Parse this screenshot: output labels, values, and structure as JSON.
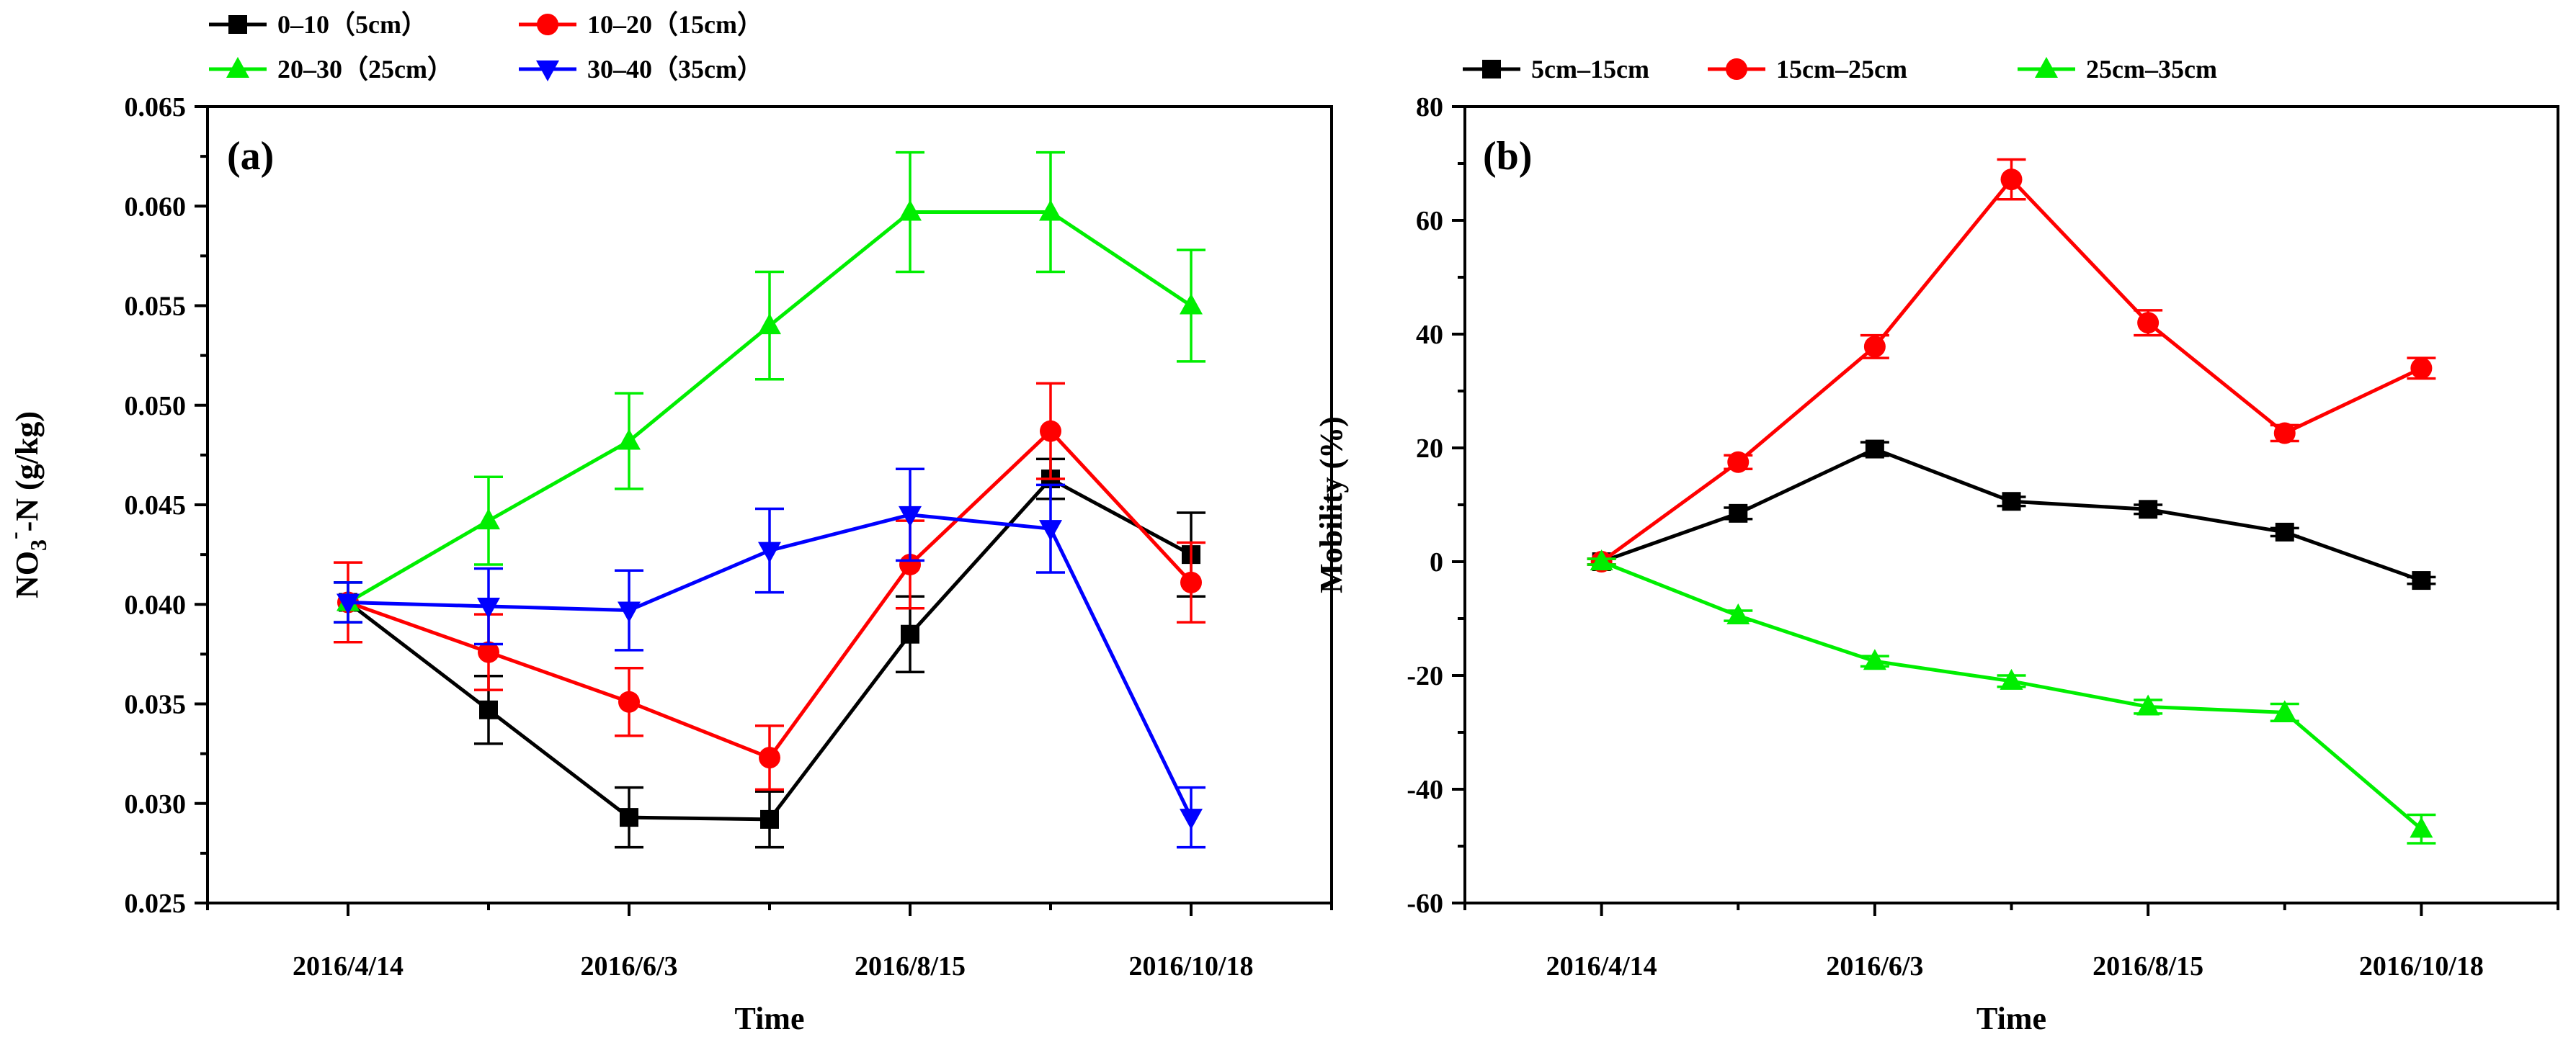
{
  "chart_data": [
    {
      "type": "line",
      "panel_label": "(a)",
      "xlabel": "Time",
      "ylabel": "NO3⁻-N (g/kg)",
      "ylabel_parts": {
        "main": "NO",
        "sub": "3",
        "sup": "-",
        "rest": "-N (g/kg)"
      },
      "x_tick_labels": [
        "2016/4/14",
        "2016/6/3",
        "2016/8/15",
        "2016/10/18"
      ],
      "x_tick_positions": [
        0,
        2,
        4,
        6
      ],
      "x_points": [
        0,
        1,
        2,
        3,
        4,
        5,
        6
      ],
      "xlim": [
        -1,
        7
      ],
      "ylim": [
        0.025,
        0.065
      ],
      "y_ticks": [
        0.025,
        0.03,
        0.035,
        0.04,
        0.045,
        0.05,
        0.055,
        0.06,
        0.065
      ],
      "y_tick_labels": [
        "0.025",
        "0.030",
        "0.035",
        "0.040",
        "0.045",
        "0.050",
        "0.055",
        "0.060",
        "0.065"
      ],
      "grid": false,
      "legend_position": "top-left, above plot",
      "series": [
        {
          "name": "0–10（5cm）",
          "color": "#000000",
          "marker": "square",
          "values": [
            0.0401,
            0.0347,
            0.0293,
            0.0292,
            0.0385,
            0.0463,
            0.0425
          ],
          "errors": [
            0.001,
            0.0017,
            0.0015,
            0.0014,
            0.0019,
            0.001,
            0.0021
          ]
        },
        {
          "name": "10–20（15cm）",
          "color": "#ff0000",
          "marker": "circle",
          "values": [
            0.0401,
            0.0376,
            0.0351,
            0.0323,
            0.042,
            0.0487,
            0.0411
          ],
          "errors": [
            0.002,
            0.0019,
            0.0017,
            0.0016,
            0.0022,
            0.0024,
            0.002
          ]
        },
        {
          "name": "20–30（25cm）",
          "color": "#00ee00",
          "marker": "triangle-up",
          "values": [
            0.0401,
            0.0442,
            0.0482,
            0.054,
            0.0597,
            0.0597,
            0.055
          ],
          "errors": [
            0.001,
            0.0022,
            0.0024,
            0.0027,
            0.003,
            0.003,
            0.0028
          ]
        },
        {
          "name": "30–40（35cm）",
          "color": "#0000ff",
          "marker": "triangle-down",
          "values": [
            0.0401,
            0.0399,
            0.0397,
            0.0427,
            0.0445,
            0.0438,
            0.0293
          ],
          "errors": [
            0.001,
            0.0019,
            0.002,
            0.0021,
            0.0023,
            0.0022,
            0.0015
          ]
        }
      ]
    },
    {
      "type": "line",
      "panel_label": "(b)",
      "xlabel": "Time",
      "ylabel": "Mobility (%)",
      "x_tick_labels": [
        "2016/4/14",
        "2016/6/3",
        "2016/8/15",
        "2016/10/18"
      ],
      "x_tick_positions": [
        0,
        2,
        4,
        6
      ],
      "x_points": [
        0,
        1,
        2,
        3,
        4,
        5,
        6
      ],
      "xlim": [
        -1,
        7
      ],
      "ylim": [
        -60,
        80
      ],
      "y_ticks": [
        -60,
        -40,
        -20,
        0,
        20,
        40,
        60,
        80
      ],
      "y_tick_labels": [
        "-60",
        "-40",
        "-20",
        "0",
        "20",
        "40",
        "60",
        "80"
      ],
      "grid": false,
      "legend_position": "top, above plot",
      "series": [
        {
          "name": "5cm–15cm",
          "color": "#000000",
          "marker": "square",
          "values": [
            0,
            8.5,
            19.8,
            10.6,
            9.2,
            5.2,
            -3.3
          ],
          "errors": [
            0.5,
            1.0,
            1.2,
            0.8,
            0.8,
            0.7,
            0.6
          ]
        },
        {
          "name": "15cm–25cm",
          "color": "#ff0000",
          "marker": "circle",
          "values": [
            0,
            17.5,
            37.8,
            67.2,
            42.0,
            22.6,
            34.0
          ],
          "errors": [
            0.5,
            1.2,
            2.0,
            3.5,
            2.2,
            1.4,
            1.8
          ]
        },
        {
          "name": "25cm–35cm",
          "color": "#00ee00",
          "marker": "triangle-up",
          "values": [
            0,
            -9.5,
            -17.5,
            -21.0,
            -25.5,
            -26.5,
            -47.0
          ],
          "errors": [
            0.5,
            0.9,
            0.9,
            1.0,
            1.2,
            1.5,
            2.5
          ]
        }
      ]
    }
  ]
}
